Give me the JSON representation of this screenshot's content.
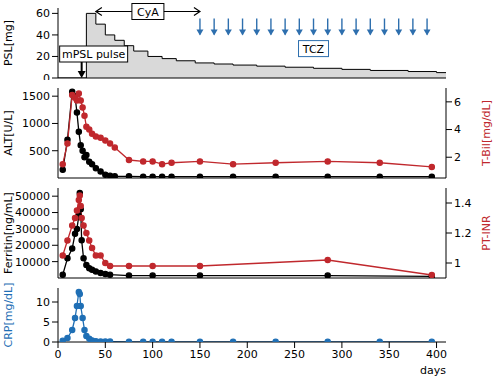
{
  "chart_data": [
    {
      "type": "area",
      "y_label": "PSL[mg]",
      "xlim": [
        0,
        410
      ],
      "ylim": [
        0,
        65
      ],
      "yticks": [
        0,
        20,
        40,
        60
      ],
      "tick_labels": "y",
      "x": [
        0,
        30,
        40,
        50,
        60,
        70,
        80,
        95,
        110,
        125,
        145,
        165,
        185,
        210,
        240,
        270,
        300,
        330,
        370,
        400,
        410
      ],
      "series": [
        {
          "type": "area",
          "line_style": "step",
          "color": "#000000",
          "values": [
            0,
            60,
            50,
            40,
            35,
            30,
            25,
            20,
            18,
            16,
            14,
            13,
            12,
            11,
            10,
            9,
            8,
            7,
            6,
            5,
            5
          ]
        }
      ],
      "annotations": [
        {
          "text": "mPSL pulse",
          "x": 25
        },
        {
          "text": "CyA",
          "x": [
            40,
            150
          ]
        },
        {
          "text": "TCZ",
          "color": "#2e6fae",
          "x": [
            150,
            165,
            180,
            195,
            210,
            225,
            240,
            255,
            270,
            285,
            300,
            315,
            330,
            345,
            360,
            375,
            390
          ]
        }
      ]
    },
    {
      "type": "line",
      "y_label": "ALT[U/L]",
      "y2_label": "T-Bil[mg/dL]",
      "xlim": [
        0,
        410
      ],
      "ylim": [
        0,
        1650
      ],
      "yticks": [
        500,
        1000,
        1500
      ],
      "y2lim": [
        0.5,
        7
      ],
      "y2ticks": [
        2,
        4,
        6
      ],
      "tick_labels": "y",
      "x": [
        5,
        10,
        15,
        18,
        20,
        22,
        24,
        26,
        28,
        30,
        33,
        36,
        40,
        45,
        50,
        55,
        60,
        75,
        90,
        100,
        110,
        120,
        150,
        185,
        230,
        285,
        340,
        395
      ],
      "series": [
        {
          "color": "#000000",
          "marker": "circle",
          "values": [
            150,
            700,
            1580,
            1500,
            1200,
            850,
            600,
            500,
            380,
            420,
            300,
            250,
            180,
            120,
            60,
            40,
            30,
            30,
            25,
            25,
            25,
            25,
            25,
            25,
            25,
            25,
            25,
            25
          ]
        },
        {
          "color": "#c0282d",
          "marker": "circle",
          "axis": "y2",
          "values": [
            1.5,
            3,
            6.5,
            6.3,
            6.1,
            6.6,
            6.1,
            5.6,
            5,
            4.2,
            4,
            3.7,
            3.5,
            3.4,
            3.2,
            3,
            2.7,
            1.8,
            1.7,
            1.7,
            1.5,
            1.6,
            1.7,
            1.5,
            1.6,
            1.7,
            1.6,
            1.3
          ]
        }
      ]
    },
    {
      "type": "line",
      "y_label": "Ferritin[ng/mL]",
      "y2_label": "PT-INR",
      "xlim": [
        0,
        410
      ],
      "ylim": [
        0,
        55000
      ],
      "yticks": [
        10000,
        20000,
        30000,
        40000,
        50000
      ],
      "y2lim": [
        0.9,
        1.5
      ],
      "y2ticks": [
        1,
        1.2,
        1.4
      ],
      "tick_labels": "y",
      "x": [
        5,
        10,
        15,
        18,
        20,
        22,
        23,
        24,
        25,
        27,
        30,
        33,
        36,
        40,
        45,
        50,
        55,
        75,
        100,
        150,
        285,
        395
      ],
      "series": [
        {
          "color": "#000000",
          "marker": "circle",
          "values": [
            2000,
            12000,
            18000,
            27000,
            30000,
            38000,
            52000,
            42000,
            23000,
            12000,
            8000,
            6000,
            5000,
            4000,
            3000,
            2500,
            2000,
            1500,
            1500,
            1500,
            1500,
            1000
          ]
        },
        {
          "color": "#c0282d",
          "marker": "circle",
          "axis": "y2",
          "values": [
            1.05,
            1.15,
            1.25,
            1.3,
            1.35,
            1.42,
            1.45,
            1.38,
            1.3,
            1.25,
            1.2,
            1.15,
            1.1,
            1.05,
            1.05,
            1.0,
            0.98,
            0.98,
            0.98,
            0.98,
            1.02,
            0.92
          ]
        }
      ]
    },
    {
      "type": "line",
      "y_label": "CRP[mg/dL]",
      "x_label": "days",
      "xlim": [
        0,
        410
      ],
      "xticks": [
        0,
        50,
        100,
        150,
        200,
        250,
        300,
        350,
        400
      ],
      "ylim": [
        0,
        13.5
      ],
      "yticks": [
        0,
        5,
        10
      ],
      "x": [
        5,
        10,
        15,
        18,
        20,
        22,
        23,
        24,
        26,
        28,
        30,
        33,
        36,
        40,
        45,
        50,
        55,
        75,
        90,
        100,
        110,
        120,
        150,
        185,
        230,
        285,
        340,
        395
      ],
      "series": [
        {
          "color": "#1f6fb5",
          "marker": "circle",
          "values": [
            0.3,
            1,
            3,
            6,
            9,
            12.5,
            12,
            9,
            6,
            3,
            1.5,
            0.8,
            0.4,
            0.2,
            0.1,
            0.1,
            0.1,
            0.05,
            0.05,
            0.05,
            0.05,
            0.05,
            0.05,
            0.05,
            0.05,
            0.05,
            0.05,
            0.05
          ]
        }
      ]
    }
  ]
}
